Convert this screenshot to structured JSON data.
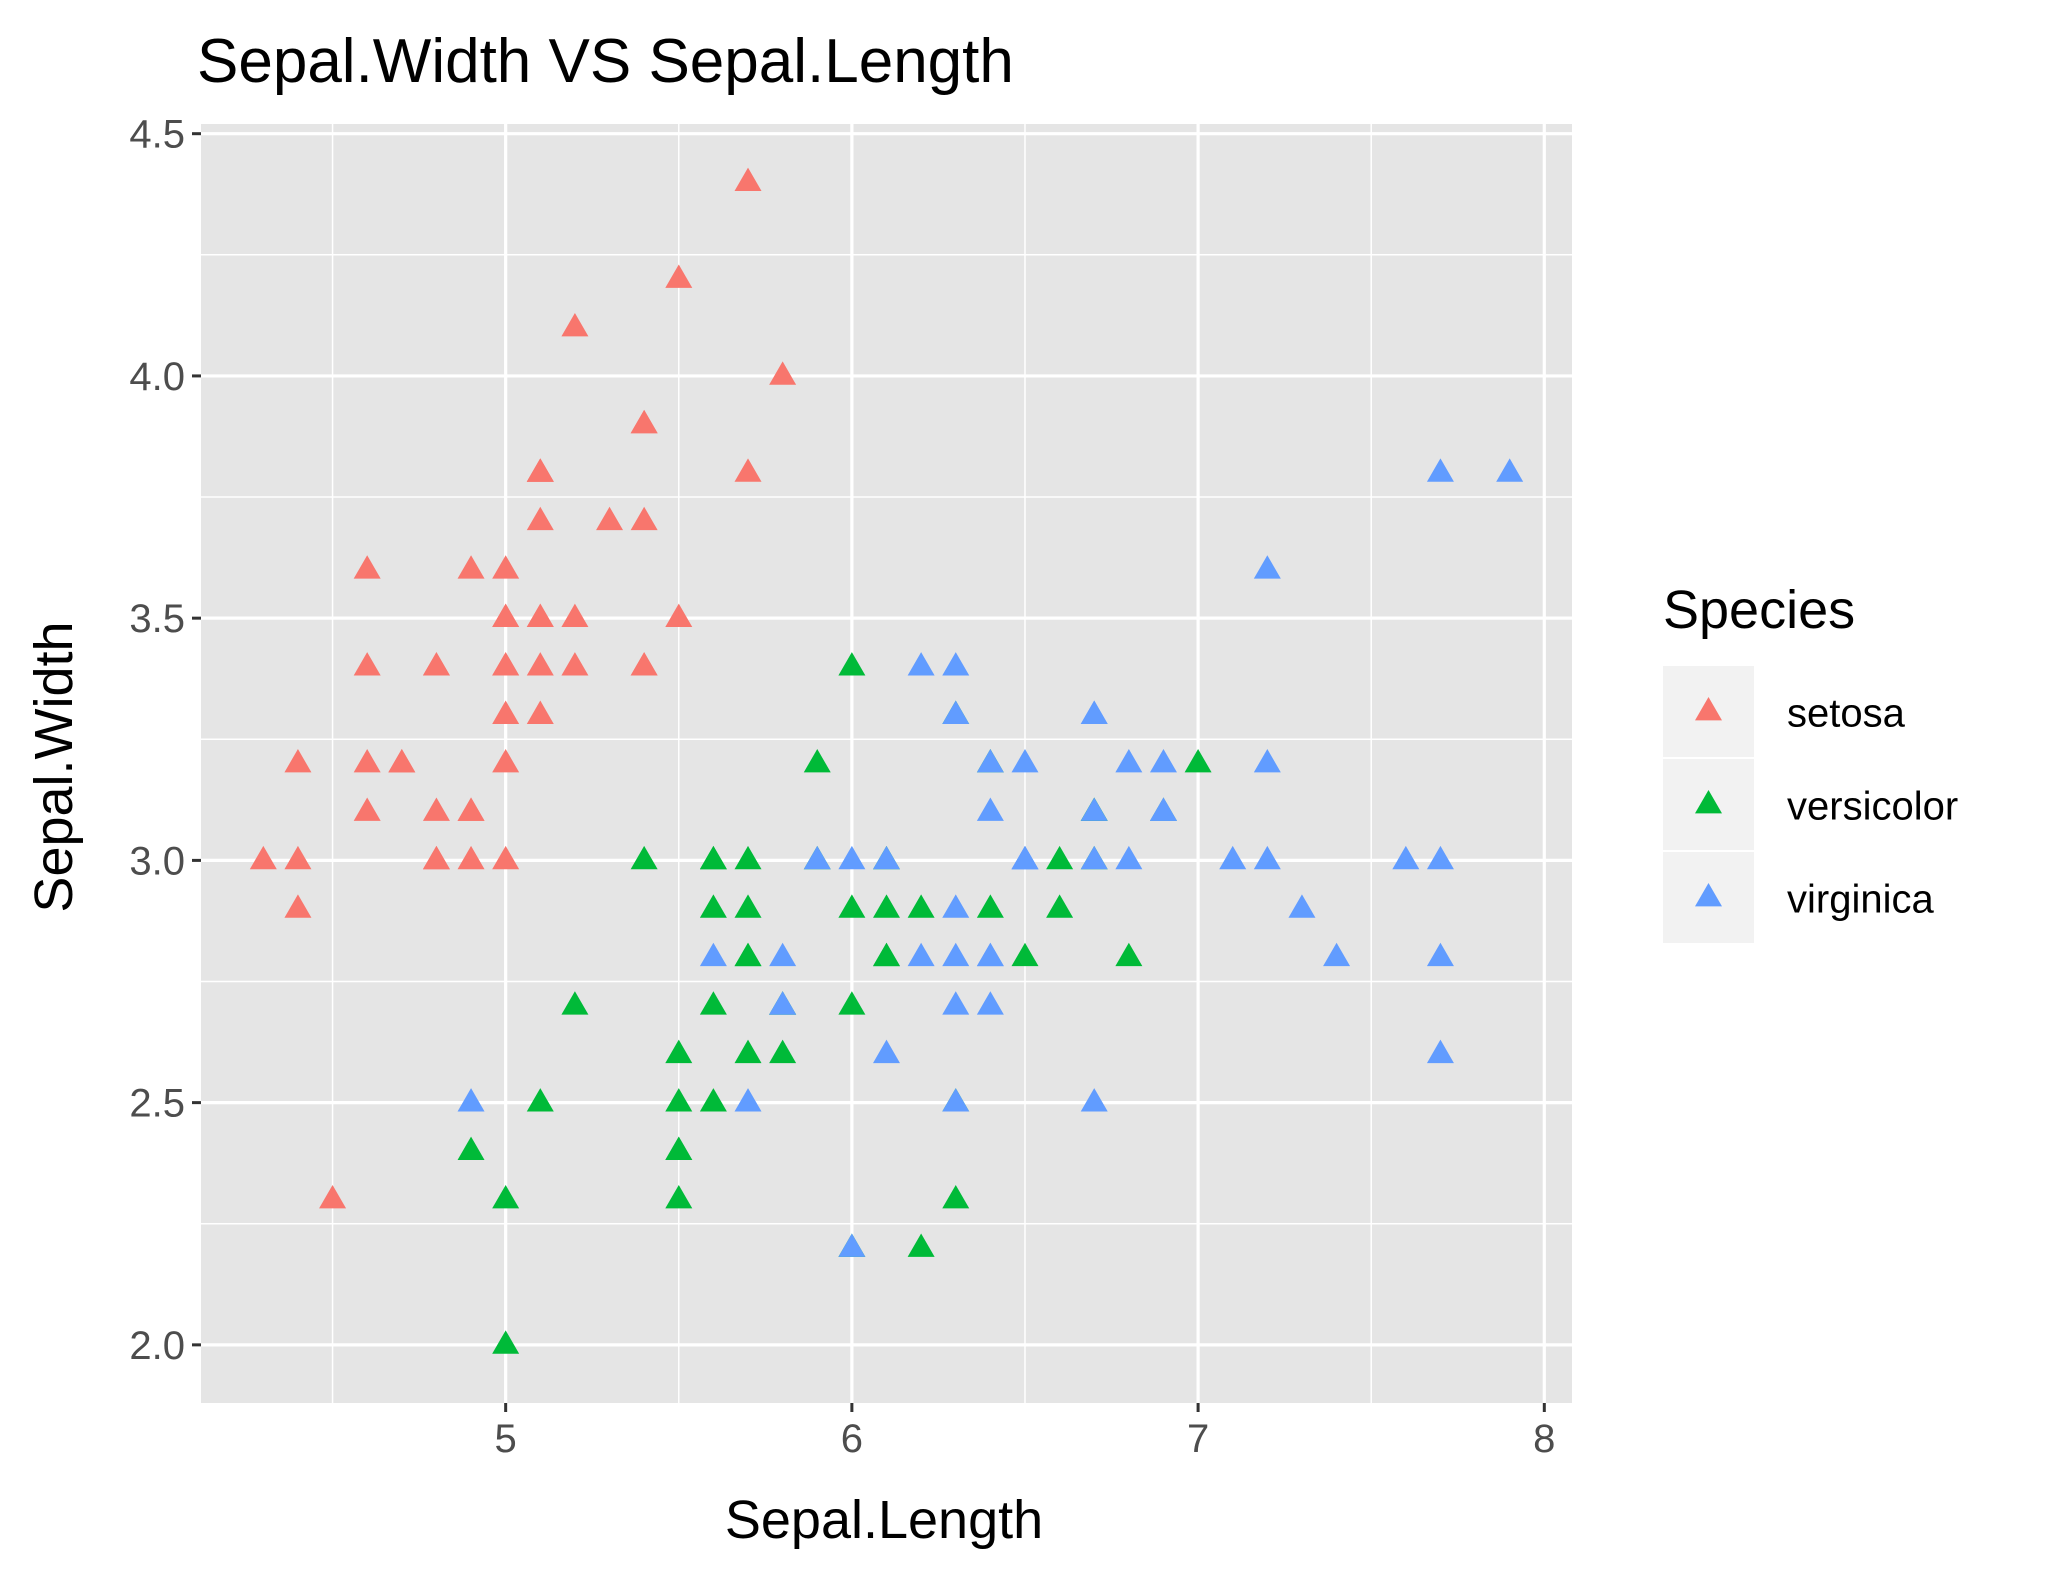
{
  "chart_data": {
    "type": "scatter",
    "title": "Sepal.Width VS Sepal.Length",
    "xlabel": "Sepal.Length",
    "ylabel": "Sepal.Width",
    "xlim": [
      4.12,
      8.08
    ],
    "ylim": [
      1.88,
      4.52
    ],
    "x_ticks": [
      5,
      6,
      7,
      8
    ],
    "x_tick_labels": [
      "5",
      "6",
      "7",
      "8"
    ],
    "y_ticks": [
      2.0,
      2.5,
      3.0,
      3.5,
      4.0,
      4.5
    ],
    "y_tick_labels": [
      "2.0",
      "2.5",
      "3.0",
      "3.5",
      "4.0",
      "4.5"
    ],
    "grid": true,
    "marker": "triangle",
    "legend": {
      "title": "Species",
      "position": "right",
      "entries": [
        "setosa",
        "versicolor",
        "virginica"
      ]
    },
    "colors": {
      "setosa": "#F8766D",
      "versicolor": "#00BA38",
      "virginica": "#619CFF",
      "panel_background": "#E5E5E5",
      "gridline": "#FFFFFF",
      "legend_key_background": "#F2F2F2"
    },
    "series": [
      {
        "name": "setosa",
        "points": [
          [
            5.1,
            3.5
          ],
          [
            4.9,
            3.0
          ],
          [
            4.7,
            3.2
          ],
          [
            4.6,
            3.1
          ],
          [
            5.0,
            3.6
          ],
          [
            5.4,
            3.9
          ],
          [
            4.6,
            3.4
          ],
          [
            5.0,
            3.4
          ],
          [
            4.4,
            2.9
          ],
          [
            4.9,
            3.1
          ],
          [
            5.4,
            3.7
          ],
          [
            4.8,
            3.4
          ],
          [
            4.8,
            3.0
          ],
          [
            4.3,
            3.0
          ],
          [
            5.8,
            4.0
          ],
          [
            5.7,
            4.4
          ],
          [
            5.4,
            3.9
          ],
          [
            5.1,
            3.5
          ],
          [
            5.7,
            3.8
          ],
          [
            5.1,
            3.8
          ],
          [
            5.4,
            3.4
          ],
          [
            5.1,
            3.7
          ],
          [
            4.6,
            3.6
          ],
          [
            5.1,
            3.3
          ],
          [
            4.8,
            3.4
          ],
          [
            5.0,
            3.0
          ],
          [
            5.0,
            3.4
          ],
          [
            5.2,
            3.5
          ],
          [
            5.2,
            3.4
          ],
          [
            4.7,
            3.2
          ],
          [
            4.8,
            3.1
          ],
          [
            5.4,
            3.4
          ],
          [
            5.2,
            4.1
          ],
          [
            5.5,
            4.2
          ],
          [
            4.9,
            3.1
          ],
          [
            5.0,
            3.2
          ],
          [
            5.5,
            3.5
          ],
          [
            4.9,
            3.6
          ],
          [
            4.4,
            3.0
          ],
          [
            5.1,
            3.4
          ],
          [
            5.0,
            3.5
          ],
          [
            4.5,
            2.3
          ],
          [
            4.4,
            3.2
          ],
          [
            5.0,
            3.5
          ],
          [
            5.1,
            3.8
          ],
          [
            4.8,
            3.0
          ],
          [
            5.1,
            3.8
          ],
          [
            4.6,
            3.2
          ],
          [
            5.3,
            3.7
          ],
          [
            5.0,
            3.3
          ]
        ]
      },
      {
        "name": "versicolor",
        "points": [
          [
            7.0,
            3.2
          ],
          [
            6.4,
            3.2
          ],
          [
            6.9,
            3.1
          ],
          [
            5.5,
            2.3
          ],
          [
            6.5,
            2.8
          ],
          [
            5.7,
            2.8
          ],
          [
            6.3,
            3.3
          ],
          [
            4.9,
            2.4
          ],
          [
            6.6,
            2.9
          ],
          [
            5.2,
            2.7
          ],
          [
            5.0,
            2.0
          ],
          [
            5.9,
            3.0
          ],
          [
            6.0,
            2.2
          ],
          [
            6.1,
            2.9
          ],
          [
            5.6,
            2.9
          ],
          [
            6.7,
            3.1
          ],
          [
            5.6,
            3.0
          ],
          [
            5.8,
            2.7
          ],
          [
            6.2,
            2.2
          ],
          [
            5.6,
            2.5
          ],
          [
            5.9,
            3.2
          ],
          [
            6.1,
            2.8
          ],
          [
            6.3,
            2.5
          ],
          [
            6.1,
            2.8
          ],
          [
            6.4,
            2.9
          ],
          [
            6.6,
            3.0
          ],
          [
            6.8,
            2.8
          ],
          [
            6.7,
            3.0
          ],
          [
            6.0,
            2.9
          ],
          [
            5.7,
            2.6
          ],
          [
            5.5,
            2.4
          ],
          [
            5.5,
            2.4
          ],
          [
            5.8,
            2.7
          ],
          [
            6.0,
            2.7
          ],
          [
            5.4,
            3.0
          ],
          [
            6.0,
            3.4
          ],
          [
            6.7,
            3.1
          ],
          [
            6.3,
            2.3
          ],
          [
            5.6,
            3.0
          ],
          [
            5.5,
            2.5
          ],
          [
            5.5,
            2.6
          ],
          [
            6.1,
            3.0
          ],
          [
            5.8,
            2.6
          ],
          [
            5.0,
            2.3
          ],
          [
            5.6,
            2.7
          ],
          [
            5.7,
            3.0
          ],
          [
            5.7,
            2.9
          ],
          [
            6.2,
            2.9
          ],
          [
            5.1,
            2.5
          ],
          [
            5.7,
            2.8
          ]
        ]
      },
      {
        "name": "virginica",
        "points": [
          [
            6.3,
            3.3
          ],
          [
            5.8,
            2.7
          ],
          [
            7.1,
            3.0
          ],
          [
            6.3,
            2.9
          ],
          [
            6.5,
            3.0
          ],
          [
            7.6,
            3.0
          ],
          [
            4.9,
            2.5
          ],
          [
            7.3,
            2.9
          ],
          [
            6.7,
            2.5
          ],
          [
            7.2,
            3.6
          ],
          [
            6.5,
            3.2
          ],
          [
            6.4,
            2.7
          ],
          [
            6.8,
            3.0
          ],
          [
            5.7,
            2.5
          ],
          [
            5.8,
            2.8
          ],
          [
            6.4,
            3.2
          ],
          [
            6.5,
            3.0
          ],
          [
            7.7,
            3.8
          ],
          [
            7.7,
            2.6
          ],
          [
            6.0,
            2.2
          ],
          [
            6.9,
            3.2
          ],
          [
            5.6,
            2.8
          ],
          [
            7.7,
            2.8
          ],
          [
            6.3,
            2.7
          ],
          [
            6.7,
            3.3
          ],
          [
            7.2,
            3.2
          ],
          [
            6.2,
            2.8
          ],
          [
            6.1,
            3.0
          ],
          [
            6.4,
            2.8
          ],
          [
            7.2,
            3.0
          ],
          [
            7.4,
            2.8
          ],
          [
            7.9,
            3.8
          ],
          [
            6.4,
            2.8
          ],
          [
            6.3,
            2.8
          ],
          [
            6.1,
            2.6
          ],
          [
            7.7,
            3.0
          ],
          [
            6.3,
            3.4
          ],
          [
            6.4,
            3.1
          ],
          [
            6.0,
            3.0
          ],
          [
            6.9,
            3.1
          ],
          [
            6.7,
            3.1
          ],
          [
            6.9,
            3.1
          ],
          [
            5.8,
            2.7
          ],
          [
            6.8,
            3.2
          ],
          [
            6.7,
            3.3
          ],
          [
            6.7,
            3.0
          ],
          [
            6.3,
            2.5
          ],
          [
            6.5,
            3.0
          ],
          [
            6.2,
            3.4
          ],
          [
            5.9,
            3.0
          ]
        ]
      }
    ]
  }
}
